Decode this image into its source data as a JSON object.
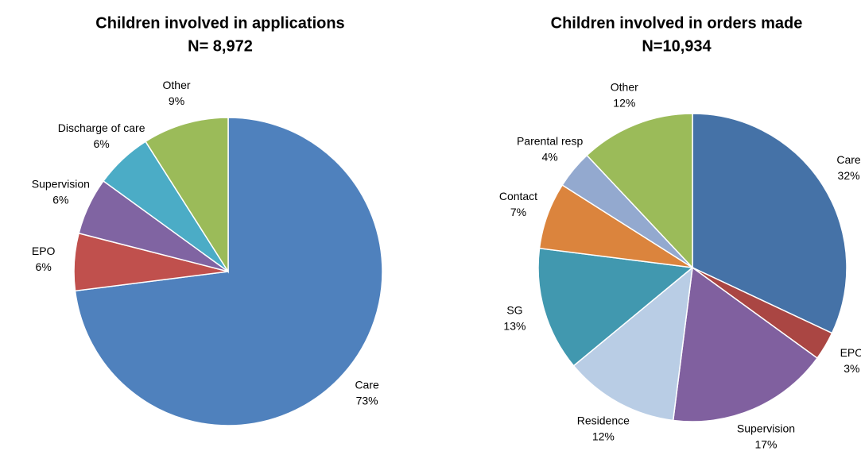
{
  "chart_data": [
    {
      "type": "pie",
      "title": "Children involved in applications",
      "subtitle": "N= 8,972",
      "categories": [
        "Care",
        "EPO",
        "Supervision",
        "Discharge of care",
        "Other"
      ],
      "values": [
        73,
        6,
        6,
        6,
        9
      ],
      "value_labels": [
        "73%",
        "6%",
        "6%",
        "6%",
        "9%"
      ],
      "colors": [
        "#4f81bd",
        "#c0504d",
        "#8064a2",
        "#4bacc6",
        "#9bbb59"
      ]
    },
    {
      "type": "pie",
      "title": "Children involved in orders made",
      "subtitle": "N=10,934",
      "categories": [
        "Care",
        "EPO",
        "Supervision",
        "Residence",
        "SG",
        "Contact",
        "Parental resp",
        "Other"
      ],
      "values": [
        32,
        3,
        17,
        12,
        13,
        7,
        4,
        12
      ],
      "value_labels": [
        "32%",
        "3%",
        "17%",
        "12%",
        "13%",
        "7%",
        "4%",
        "12%"
      ],
      "colors": [
        "#4572a7",
        "#aa4643",
        "#80609f",
        "#b9cde5",
        "#4198af",
        "#db843d",
        "#93a9cf",
        "#9bbb59"
      ]
    }
  ]
}
